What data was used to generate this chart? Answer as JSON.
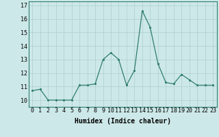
{
  "xlabel": "Humidex (Indice chaleur)",
  "x_values": [
    0,
    1,
    2,
    3,
    4,
    5,
    6,
    7,
    8,
    9,
    10,
    11,
    12,
    13,
    14,
    15,
    16,
    17,
    18,
    19,
    20,
    21,
    22,
    23
  ],
  "y_values": [
    10.7,
    10.8,
    10.0,
    10.0,
    10.0,
    10.0,
    11.1,
    11.1,
    11.2,
    13.0,
    13.5,
    13.0,
    11.1,
    12.2,
    16.6,
    15.4,
    12.7,
    11.3,
    11.2,
    11.9,
    11.5,
    11.1,
    11.1,
    11.1
  ],
  "ylim": [
    9.5,
    17.3
  ],
  "xlim": [
    -0.5,
    23.5
  ],
  "yticks": [
    10,
    11,
    12,
    13,
    14,
    15,
    16,
    17
  ],
  "xticks": [
    0,
    1,
    2,
    3,
    4,
    5,
    6,
    7,
    8,
    9,
    10,
    11,
    12,
    13,
    14,
    15,
    16,
    17,
    18,
    19,
    20,
    21,
    22,
    23
  ],
  "line_color": "#2e7d6e",
  "marker_color": "#2e7d6e",
  "bg_color": "#cde8e8",
  "grid_color": "#aecece",
  "label_fontsize": 7,
  "tick_fontsize": 6
}
